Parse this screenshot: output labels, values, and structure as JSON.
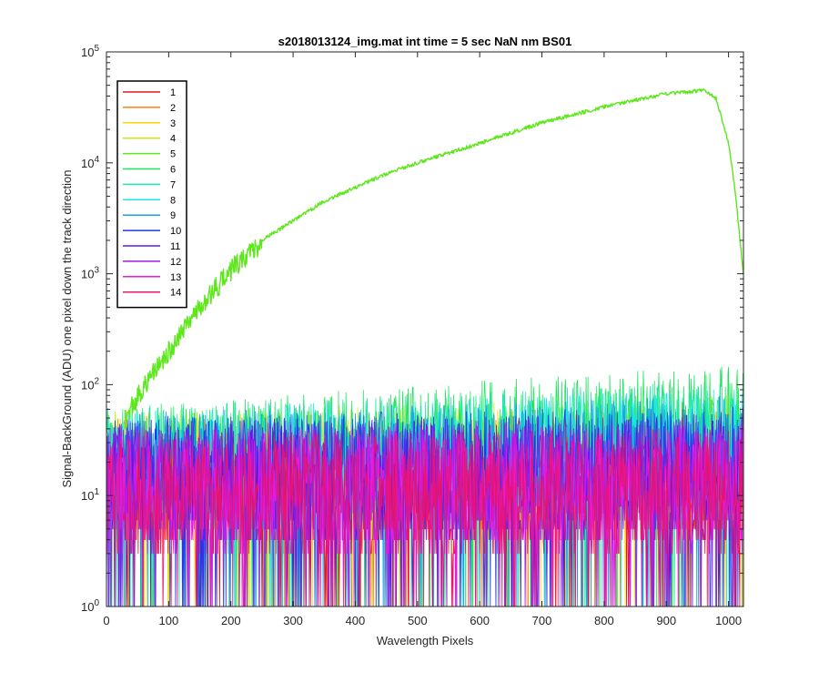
{
  "chart_data": {
    "type": "line",
    "title": "s2018013124_img.mat int time = 5 sec  NaN nm BS01",
    "xlabel": "Wavelength Pixels",
    "ylabel": "Signal-BackGround (ADU) one pixel down the track direction",
    "xlim": [
      0,
      1024
    ],
    "ylim": [
      1,
      100000
    ],
    "yscale": "log",
    "grid": false,
    "legend_position": "top-left",
    "x_ticks": [
      "0",
      "100",
      "200",
      "300",
      "400",
      "500",
      "600",
      "700",
      "800",
      "900",
      "1000"
    ],
    "y_tick_values": [
      1,
      10,
      100,
      1000,
      10000,
      100000
    ],
    "y_ticks": [
      {
        "base": "10",
        "exp": "0"
      },
      {
        "base": "10",
        "exp": "1"
      },
      {
        "base": "10",
        "exp": "2"
      },
      {
        "base": "10",
        "exp": "3"
      },
      {
        "base": "10",
        "exp": "4"
      },
      {
        "base": "10",
        "exp": "5"
      }
    ],
    "series": [
      {
        "name": "1",
        "color": "#e8141e",
        "profile": "noise",
        "level": [
          [
            0,
            12
          ],
          [
            1024,
            12
          ]
        ]
      },
      {
        "name": "2",
        "color": "#ff7f0e",
        "profile": "noise",
        "level": [
          [
            0,
            14
          ],
          [
            1024,
            16
          ]
        ]
      },
      {
        "name": "3",
        "color": "#ffd400",
        "profile": "noise",
        "level": [
          [
            0,
            15
          ],
          [
            1024,
            18
          ]
        ]
      },
      {
        "name": "4",
        "color": "#c8e81a",
        "profile": "noise",
        "level": [
          [
            0,
            16
          ],
          [
            1024,
            22
          ]
        ]
      },
      {
        "name": "5",
        "color": "#5ce81a",
        "profile": "signal",
        "level": [
          [
            30,
            50
          ],
          [
            50,
            80
          ],
          [
            100,
            200
          ],
          [
            150,
            500
          ],
          [
            200,
            1100
          ],
          [
            250,
            2000
          ],
          [
            300,
            3000
          ],
          [
            350,
            4500
          ],
          [
            400,
            6000
          ],
          [
            450,
            8000
          ],
          [
            500,
            10000
          ],
          [
            600,
            15000
          ],
          [
            700,
            23000
          ],
          [
            800,
            32000
          ],
          [
            900,
            42000
          ],
          [
            960,
            45000
          ],
          [
            980,
            38000
          ],
          [
            1000,
            15000
          ],
          [
            1010,
            6000
          ],
          [
            1024,
            1000
          ]
        ]
      },
      {
        "name": "6",
        "color": "#1ae85a",
        "profile": "noise",
        "level": [
          [
            0,
            18
          ],
          [
            1024,
            42
          ]
        ]
      },
      {
        "name": "7",
        "color": "#1ae8b0",
        "profile": "noise",
        "level": [
          [
            0,
            17
          ],
          [
            1024,
            30
          ]
        ]
      },
      {
        "name": "8",
        "color": "#1ae8e8",
        "profile": "noise",
        "level": [
          [
            0,
            16
          ],
          [
            1024,
            26
          ]
        ]
      },
      {
        "name": "9",
        "color": "#1a9ce8",
        "profile": "noise",
        "level": [
          [
            0,
            15
          ],
          [
            1024,
            22
          ]
        ]
      },
      {
        "name": "10",
        "color": "#1a3ce8",
        "profile": "noise",
        "level": [
          [
            0,
            14
          ],
          [
            1024,
            18
          ]
        ]
      },
      {
        "name": "11",
        "color": "#5a1ae8",
        "profile": "noise",
        "level": [
          [
            0,
            13
          ],
          [
            1024,
            15
          ]
        ]
      },
      {
        "name": "12",
        "color": "#a01ae8",
        "profile": "noise",
        "level": [
          [
            0,
            12
          ],
          [
            1024,
            14
          ]
        ]
      },
      {
        "name": "13",
        "color": "#e81ae0",
        "profile": "noise",
        "level": [
          [
            0,
            11
          ],
          [
            1024,
            12
          ]
        ]
      },
      {
        "name": "14",
        "color": "#e8146e",
        "profile": "noise",
        "level": [
          [
            0,
            10
          ],
          [
            1024,
            11
          ]
        ]
      }
    ]
  }
}
